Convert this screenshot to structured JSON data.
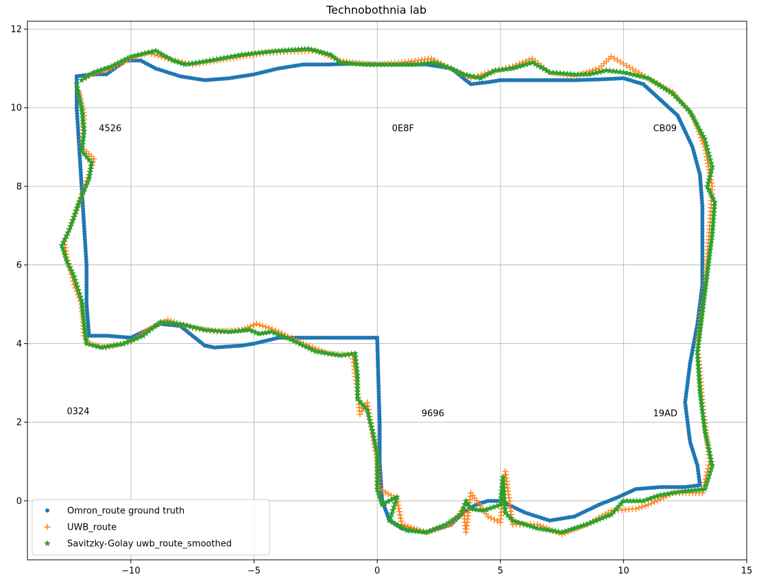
{
  "chart_data": {
    "type": "scatter",
    "title": "Technobothnia lab",
    "xlabel": "",
    "ylabel": "",
    "xlim": [
      -14.2,
      15.0
    ],
    "ylim": [
      -1.5,
      12.2
    ],
    "grid": true,
    "legend_position": "lower-left",
    "x_ticks": [
      -10,
      -5,
      0,
      5,
      10,
      15
    ],
    "x_tick_labels": [
      "−10",
      "−5",
      "0",
      "5",
      "10",
      "15"
    ],
    "y_ticks": [
      0,
      2,
      4,
      6,
      8,
      10,
      12
    ],
    "y_tick_labels": [
      "0",
      "2",
      "4",
      "6",
      "8",
      "10",
      "12"
    ],
    "annotations": [
      {
        "text": "4526",
        "x": -11.3,
        "y": 9.4
      },
      {
        "text": "0E8F",
        "x": 0.6,
        "y": 9.4
      },
      {
        "text": "CB09",
        "x": 11.2,
        "y": 9.4
      },
      {
        "text": "0324",
        "x": -12.6,
        "y": 2.2
      },
      {
        "text": "9696",
        "x": 1.8,
        "y": 2.15
      },
      {
        "text": "19AD",
        "x": 11.2,
        "y": 2.15
      }
    ],
    "series": [
      {
        "name": "Omron_route ground truth",
        "marker": "dot",
        "color": "#1f77b4",
        "points": [
          [
            -12.2,
            10.8
          ],
          [
            -11.6,
            10.85
          ],
          [
            -11.0,
            10.85
          ],
          [
            -10.2,
            11.2
          ],
          [
            -9.6,
            11.2
          ],
          [
            -9.0,
            11.0
          ],
          [
            -8.0,
            10.8
          ],
          [
            -7.0,
            10.7
          ],
          [
            -6.0,
            10.75
          ],
          [
            -5.0,
            10.85
          ],
          [
            -4.0,
            11.0
          ],
          [
            -3.0,
            11.1
          ],
          [
            -2.0,
            11.1
          ],
          [
            -1.0,
            11.12
          ],
          [
            0.0,
            11.1
          ],
          [
            1.0,
            11.1
          ],
          [
            2.0,
            11.1
          ],
          [
            3.0,
            11.0
          ],
          [
            3.8,
            10.6
          ],
          [
            4.5,
            10.65
          ],
          [
            5.0,
            10.7
          ],
          [
            6.0,
            10.7
          ],
          [
            7.0,
            10.7
          ],
          [
            8.0,
            10.7
          ],
          [
            9.0,
            10.72
          ],
          [
            10.0,
            10.75
          ],
          [
            10.8,
            10.6
          ],
          [
            11.5,
            10.2
          ],
          [
            12.2,
            9.8
          ],
          [
            12.8,
            9.0
          ],
          [
            13.1,
            8.3
          ],
          [
            13.2,
            7.5
          ],
          [
            13.2,
            6.5
          ],
          [
            13.2,
            5.5
          ],
          [
            13.0,
            4.5
          ],
          [
            12.7,
            3.5
          ],
          [
            12.5,
            2.5
          ],
          [
            12.7,
            1.5
          ],
          [
            13.0,
            0.9
          ],
          [
            13.1,
            0.4
          ],
          [
            12.5,
            0.35
          ],
          [
            11.5,
            0.35
          ],
          [
            10.5,
            0.3
          ],
          [
            9.8,
            0.1
          ],
          [
            9.0,
            -0.1
          ],
          [
            8.0,
            -0.4
          ],
          [
            7.0,
            -0.5
          ],
          [
            6.0,
            -0.3
          ],
          [
            5.0,
            0.0
          ],
          [
            4.5,
            0.0
          ],
          [
            4.0,
            -0.1
          ],
          [
            3.5,
            -0.3
          ],
          [
            3.0,
            -0.6
          ],
          [
            2.0,
            -0.8
          ],
          [
            1.0,
            -0.7
          ],
          [
            0.5,
            -0.5
          ],
          [
            0.2,
            0.0
          ],
          [
            0.1,
            1.0
          ],
          [
            0.1,
            2.0
          ],
          [
            0.05,
            3.0
          ],
          [
            0.0,
            4.15
          ],
          [
            -1.0,
            4.15
          ],
          [
            -2.0,
            4.15
          ],
          [
            -3.0,
            4.15
          ],
          [
            -4.0,
            4.15
          ],
          [
            -5.0,
            4.0
          ],
          [
            -5.5,
            3.95
          ],
          [
            -6.6,
            3.9
          ],
          [
            -7.0,
            3.95
          ],
          [
            -7.5,
            4.2
          ],
          [
            -8.0,
            4.45
          ],
          [
            -8.8,
            4.5
          ],
          [
            -9.5,
            4.3
          ],
          [
            -10.0,
            4.15
          ],
          [
            -11.0,
            4.2
          ],
          [
            -11.7,
            4.2
          ],
          [
            -11.8,
            5.0
          ],
          [
            -11.8,
            6.0
          ],
          [
            -11.9,
            7.0
          ],
          [
            -12.0,
            8.0
          ],
          [
            -12.1,
            9.0
          ],
          [
            -12.2,
            10.0
          ],
          [
            -12.2,
            10.8
          ]
        ]
      },
      {
        "name": "UWB_route",
        "marker": "plus",
        "color": "#ff7f0e",
        "points": [
          [
            -12.1,
            10.4
          ],
          [
            -11.9,
            9.8
          ],
          [
            -12.0,
            9.0
          ],
          [
            -11.5,
            8.7
          ],
          [
            -11.7,
            8.3
          ],
          [
            -12.2,
            7.4
          ],
          [
            -12.7,
            6.6
          ],
          [
            -12.6,
            6.2
          ],
          [
            -12.3,
            5.5
          ],
          [
            -12.0,
            5.0
          ],
          [
            -11.9,
            4.2
          ],
          [
            -11.7,
            4.0
          ],
          [
            -11.0,
            3.9
          ],
          [
            -10.0,
            4.05
          ],
          [
            -9.2,
            4.4
          ],
          [
            -8.5,
            4.6
          ],
          [
            -7.5,
            4.4
          ],
          [
            -6.5,
            4.3
          ],
          [
            -5.5,
            4.35
          ],
          [
            -4.9,
            4.5
          ],
          [
            -4.4,
            4.4
          ],
          [
            -4.0,
            4.3
          ],
          [
            -3.0,
            4.0
          ],
          [
            -2.0,
            3.75
          ],
          [
            -1.0,
            3.7
          ],
          [
            -0.8,
            2.8
          ],
          [
            -0.7,
            2.2
          ],
          [
            -0.4,
            2.5
          ],
          [
            0.0,
            1.0
          ],
          [
            0.1,
            0.3
          ],
          [
            0.8,
            0.05
          ],
          [
            1.0,
            -0.6
          ],
          [
            2.0,
            -0.8
          ],
          [
            3.0,
            -0.6
          ],
          [
            3.5,
            -0.2
          ],
          [
            3.6,
            -0.8
          ],
          [
            3.8,
            0.2
          ],
          [
            4.5,
            -0.4
          ],
          [
            5.0,
            -0.55
          ],
          [
            5.2,
            0.75
          ],
          [
            5.5,
            -0.6
          ],
          [
            6.5,
            -0.6
          ],
          [
            7.5,
            -0.85
          ],
          [
            8.5,
            -0.6
          ],
          [
            9.5,
            -0.25
          ],
          [
            10.5,
            -0.2
          ],
          [
            11.0,
            -0.1
          ],
          [
            12.0,
            0.2
          ],
          [
            13.2,
            0.2
          ],
          [
            13.5,
            1.0
          ],
          [
            13.2,
            2.5
          ],
          [
            13.0,
            4.0
          ],
          [
            13.3,
            5.5
          ],
          [
            13.5,
            7.0
          ],
          [
            13.6,
            8.0
          ],
          [
            13.3,
            9.0
          ],
          [
            12.8,
            9.8
          ],
          [
            12.0,
            10.4
          ],
          [
            11.0,
            10.75
          ],
          [
            9.5,
            11.3
          ],
          [
            9.0,
            11.0
          ],
          [
            8.0,
            10.8
          ],
          [
            7.0,
            10.9
          ],
          [
            6.3,
            11.25
          ],
          [
            5.5,
            11.05
          ],
          [
            4.5,
            10.9
          ],
          [
            3.8,
            10.75
          ],
          [
            3.0,
            11.0
          ],
          [
            2.2,
            11.25
          ],
          [
            1.0,
            11.15
          ],
          [
            0.0,
            11.1
          ],
          [
            -1.0,
            11.15
          ],
          [
            -1.5,
            11.2
          ],
          [
            -2.5,
            11.45
          ],
          [
            -4.5,
            11.4
          ],
          [
            -6.5,
            11.2
          ],
          [
            -7.5,
            11.1
          ],
          [
            -8.5,
            11.25
          ],
          [
            -9.3,
            11.4
          ],
          [
            -10.0,
            11.25
          ],
          [
            -10.8,
            11.0
          ],
          [
            -11.8,
            10.8
          ]
        ]
      },
      {
        "name": "Savitzky-Golay uwb_route_smoothed",
        "marker": "star",
        "color": "#2ca02c",
        "points": [
          [
            -12.2,
            10.6
          ],
          [
            -12.0,
            10.0
          ],
          [
            -11.9,
            9.4
          ],
          [
            -12.0,
            8.9
          ],
          [
            -11.6,
            8.6
          ],
          [
            -11.7,
            8.2
          ],
          [
            -12.1,
            7.6
          ],
          [
            -12.5,
            6.9
          ],
          [
            -12.8,
            6.5
          ],
          [
            -12.6,
            6.1
          ],
          [
            -12.3,
            5.7
          ],
          [
            -12.0,
            5.1
          ],
          [
            -11.9,
            4.5
          ],
          [
            -11.8,
            4.0
          ],
          [
            -11.2,
            3.9
          ],
          [
            -10.3,
            4.0
          ],
          [
            -9.5,
            4.2
          ],
          [
            -8.8,
            4.55
          ],
          [
            -8.0,
            4.5
          ],
          [
            -7.0,
            4.35
          ],
          [
            -6.0,
            4.3
          ],
          [
            -5.2,
            4.35
          ],
          [
            -4.8,
            4.25
          ],
          [
            -4.3,
            4.3
          ],
          [
            -3.5,
            4.1
          ],
          [
            -2.5,
            3.8
          ],
          [
            -1.5,
            3.7
          ],
          [
            -0.9,
            3.75
          ],
          [
            -0.8,
            3.2
          ],
          [
            -0.8,
            2.6
          ],
          [
            -0.4,
            2.3
          ],
          [
            -0.2,
            1.8
          ],
          [
            0.0,
            1.2
          ],
          [
            0.0,
            0.3
          ],
          [
            0.2,
            -0.1
          ],
          [
            0.8,
            0.1
          ],
          [
            0.5,
            -0.5
          ],
          [
            1.2,
            -0.75
          ],
          [
            2.0,
            -0.8
          ],
          [
            2.8,
            -0.6
          ],
          [
            3.4,
            -0.35
          ],
          [
            3.6,
            0.0
          ],
          [
            3.8,
            -0.2
          ],
          [
            4.3,
            -0.25
          ],
          [
            5.0,
            -0.1
          ],
          [
            5.1,
            0.6
          ],
          [
            5.2,
            -0.3
          ],
          [
            5.5,
            -0.5
          ],
          [
            6.5,
            -0.7
          ],
          [
            7.5,
            -0.8
          ],
          [
            8.5,
            -0.6
          ],
          [
            9.5,
            -0.35
          ],
          [
            10.0,
            0.0
          ],
          [
            10.8,
            0.0
          ],
          [
            11.5,
            0.15
          ],
          [
            12.5,
            0.25
          ],
          [
            13.3,
            0.3
          ],
          [
            13.6,
            0.9
          ],
          [
            13.3,
            1.8
          ],
          [
            13.1,
            2.8
          ],
          [
            13.0,
            3.8
          ],
          [
            13.2,
            4.8
          ],
          [
            13.4,
            5.8
          ],
          [
            13.6,
            6.8
          ],
          [
            13.7,
            7.6
          ],
          [
            13.4,
            8.0
          ],
          [
            13.6,
            8.5
          ],
          [
            13.3,
            9.2
          ],
          [
            12.7,
            9.9
          ],
          [
            12.0,
            10.35
          ],
          [
            11.0,
            10.75
          ],
          [
            10.0,
            10.9
          ],
          [
            9.3,
            10.95
          ],
          [
            8.6,
            10.85
          ],
          [
            8.0,
            10.85
          ],
          [
            7.0,
            10.9
          ],
          [
            6.3,
            11.15
          ],
          [
            5.5,
            11.0
          ],
          [
            4.8,
            10.95
          ],
          [
            4.2,
            10.75
          ],
          [
            3.5,
            10.85
          ],
          [
            3.0,
            11.0
          ],
          [
            2.3,
            11.15
          ],
          [
            1.5,
            11.1
          ],
          [
            0.5,
            11.1
          ],
          [
            -0.5,
            11.1
          ],
          [
            -1.5,
            11.15
          ],
          [
            -1.9,
            11.35
          ],
          [
            -2.8,
            11.5
          ],
          [
            -4.0,
            11.45
          ],
          [
            -5.5,
            11.35
          ],
          [
            -6.8,
            11.2
          ],
          [
            -7.8,
            11.1
          ],
          [
            -8.3,
            11.2
          ],
          [
            -9.0,
            11.45
          ],
          [
            -10.0,
            11.3
          ],
          [
            -10.8,
            11.05
          ],
          [
            -11.5,
            10.9
          ],
          [
            -12.0,
            10.7
          ]
        ]
      }
    ]
  }
}
